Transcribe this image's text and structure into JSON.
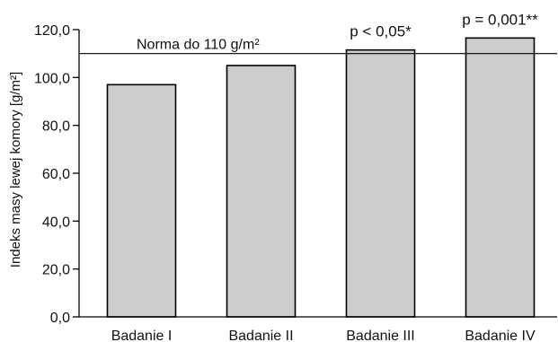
{
  "chart_data": {
    "type": "bar",
    "categories": [
      "Badanie I",
      "Badanie II",
      "Badanie III",
      "Badanie IV"
    ],
    "values": [
      97,
      105,
      111.5,
      116.5
    ],
    "ylabel": "Indeks masy lewej komory [g/m²]",
    "ylim": [
      0,
      120
    ],
    "yticks": [
      0,
      20,
      40,
      60,
      80,
      100,
      120
    ],
    "ytick_labels": [
      "0,0",
      "20,0",
      "40,0",
      "60,0",
      "80,0",
      "100,0",
      "120,0"
    ],
    "reference_line": {
      "value": 110,
      "label": "Norma do 110 g/m²"
    },
    "bar_annotations": [
      "",
      "",
      "p < 0,05*",
      "p = 0,001**"
    ],
    "bar_color": "#cccccc",
    "grid": false
  }
}
